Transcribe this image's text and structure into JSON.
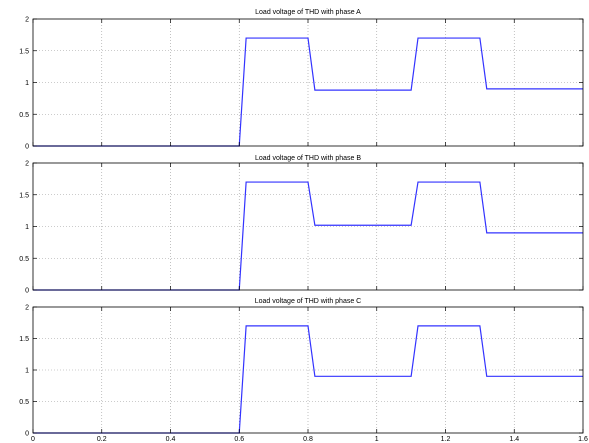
{
  "chart_data": [
    {
      "type": "line",
      "title": "Load voltage of THD with phase A",
      "xlim": [
        0,
        1.6
      ],
      "ylim": [
        0,
        2
      ],
      "xticks": [
        0,
        0.2,
        0.4,
        0.6,
        0.8,
        1,
        1.2,
        1.4,
        1.6
      ],
      "yticks": [
        0,
        0.5,
        1,
        1.5,
        2
      ],
      "grid": true,
      "series": [
        {
          "color": "#3333ff",
          "x": [
            0,
            0.6,
            0.62,
            0.8,
            0.82,
            1.1,
            1.12,
            1.3,
            1.32,
            1.6
          ],
          "y": [
            0,
            0,
            1.7,
            1.7,
            0.88,
            0.88,
            1.7,
            1.7,
            0.9,
            0.9
          ]
        }
      ]
    },
    {
      "type": "line",
      "title": "Load voltage of THD with phase B",
      "xlim": [
        0,
        1.6
      ],
      "ylim": [
        0,
        2
      ],
      "xticks": [
        0,
        0.2,
        0.4,
        0.6,
        0.8,
        1,
        1.2,
        1.4,
        1.6
      ],
      "yticks": [
        0,
        0.5,
        1,
        1.5,
        2
      ],
      "grid": true,
      "series": [
        {
          "color": "#3333ff",
          "x": [
            0,
            0.6,
            0.62,
            0.8,
            0.82,
            1.1,
            1.12,
            1.3,
            1.32,
            1.6
          ],
          "y": [
            0,
            0,
            1.7,
            1.7,
            1.02,
            1.02,
            1.7,
            1.7,
            0.9,
            0.9
          ]
        }
      ]
    },
    {
      "type": "line",
      "title": "Load voltage of THD with phase C",
      "xlim": [
        0,
        1.6
      ],
      "ylim": [
        0,
        2
      ],
      "xticks": [
        0,
        0.2,
        0.4,
        0.6,
        0.8,
        1,
        1.2,
        1.4,
        1.6
      ],
      "yticks": [
        0,
        0.5,
        1,
        1.5,
        2
      ],
      "grid": true,
      "series": [
        {
          "color": "#3333ff",
          "x": [
            0,
            0.6,
            0.62,
            0.8,
            0.82,
            1.1,
            1.12,
            1.3,
            1.32,
            1.6
          ],
          "y": [
            0,
            0,
            1.7,
            1.7,
            0.9,
            0.9,
            1.7,
            1.7,
            0.9,
            0.9
          ]
        }
      ]
    }
  ]
}
